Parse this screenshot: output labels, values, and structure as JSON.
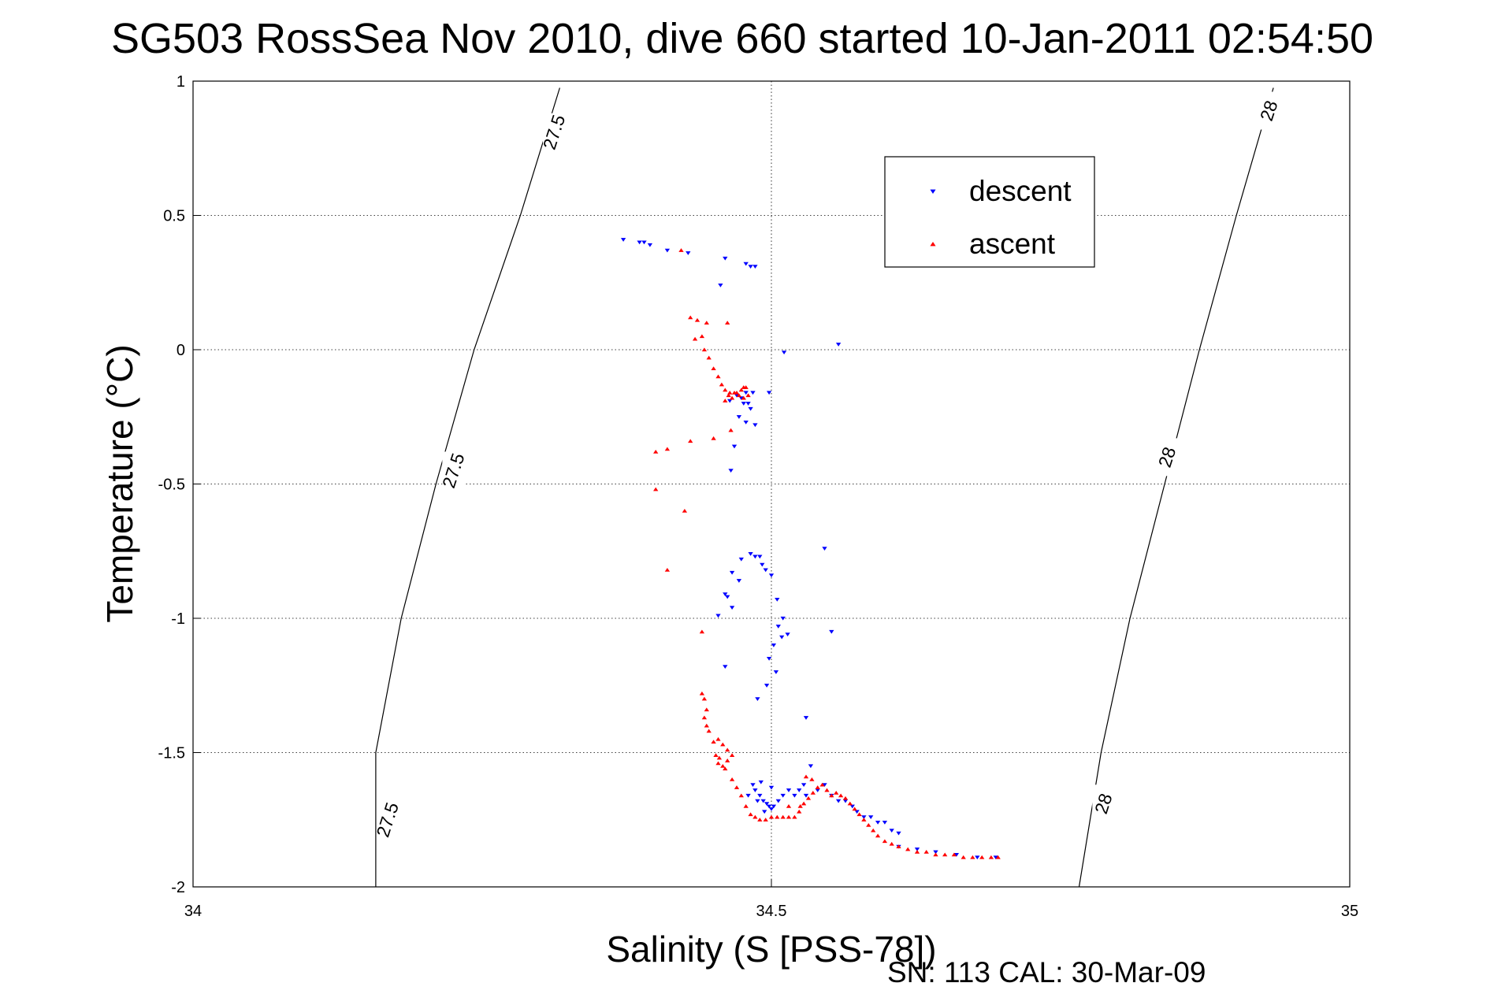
{
  "chart_data": {
    "type": "scatter",
    "title": "SG503 RossSea Nov 2010, dive 660 started 10-Jan-2011 02:54:50",
    "xlabel": "Salinity (S [PSS-78])",
    "ylabel": "Temperature (°C)",
    "xlim": [
      34,
      35
    ],
    "ylim": [
      -2,
      1
    ],
    "xticks": [
      34,
      34.5,
      35
    ],
    "xtick_labels": [
      "34",
      "34.5",
      "35"
    ],
    "yticks": [
      1,
      0.5,
      0,
      -0.5,
      -1,
      -1.5,
      -2
    ],
    "ytick_labels": [
      "1",
      "0.5",
      "0",
      "-0.5",
      "-1",
      "-1.5",
      "-2"
    ],
    "grid": true,
    "legend_position": "upper-right",
    "density_contours": [
      {
        "label": "27.5",
        "points": [
          [
            34.317,
            0.975
          ],
          [
            34.283,
            0.5
          ],
          [
            34.243,
            0.0
          ],
          [
            34.21,
            -0.5
          ],
          [
            34.18,
            -1.0
          ],
          [
            34.158,
            -1.5
          ],
          [
            34.158,
            -2.0
          ]
        ],
        "label_points": [
          [
            34.312,
            0.81
          ],
          [
            34.225,
            -0.45
          ],
          [
            34.168,
            -1.75
          ]
        ]
      },
      {
        "label": "28",
        "points": [
          [
            34.934,
            0.975
          ],
          [
            34.902,
            0.5
          ],
          [
            34.87,
            0.0
          ],
          [
            34.84,
            -0.5
          ],
          [
            34.81,
            -1.0
          ],
          [
            34.785,
            -1.5
          ],
          [
            34.766,
            -2.0
          ]
        ],
        "label_points": [
          [
            34.93,
            0.89
          ],
          [
            34.842,
            -0.4
          ],
          [
            34.787,
            -1.69
          ]
        ]
      }
    ],
    "series": [
      {
        "name": "descent",
        "color": "#0000ff",
        "marker": "triangle-down",
        "points": [
          [
            34.372,
            0.41
          ],
          [
            34.386,
            0.4
          ],
          [
            34.39,
            0.4
          ],
          [
            34.395,
            0.39
          ],
          [
            34.41,
            0.37
          ],
          [
            34.428,
            0.36
          ],
          [
            34.46,
            0.34
          ],
          [
            34.478,
            0.32
          ],
          [
            34.482,
            0.31
          ],
          [
            34.486,
            0.31
          ],
          [
            34.456,
            0.24
          ],
          [
            34.511,
            -0.01
          ],
          [
            34.558,
            0.02
          ],
          [
            34.47,
            -0.17
          ],
          [
            34.474,
            -0.18
          ],
          [
            34.476,
            -0.2
          ],
          [
            34.48,
            -0.2
          ],
          [
            34.482,
            -0.22
          ],
          [
            34.464,
            -0.19
          ],
          [
            34.478,
            -0.16
          ],
          [
            34.484,
            -0.16
          ],
          [
            34.498,
            -0.16
          ],
          [
            34.472,
            -0.25
          ],
          [
            34.478,
            -0.27
          ],
          [
            34.486,
            -0.28
          ],
          [
            34.468,
            -0.36
          ],
          [
            34.465,
            -0.45
          ],
          [
            34.482,
            -0.76
          ],
          [
            34.486,
            -0.77
          ],
          [
            34.49,
            -0.77
          ],
          [
            34.474,
            -0.78
          ],
          [
            34.492,
            -0.8
          ],
          [
            34.495,
            -0.82
          ],
          [
            34.5,
            -0.84
          ],
          [
            34.466,
            -0.83
          ],
          [
            34.472,
            -0.86
          ],
          [
            34.46,
            -0.91
          ],
          [
            34.462,
            -0.92
          ],
          [
            34.466,
            -0.96
          ],
          [
            34.454,
            -0.99
          ],
          [
            34.505,
            -0.93
          ],
          [
            34.51,
            -1.0
          ],
          [
            34.506,
            -1.03
          ],
          [
            34.509,
            -1.07
          ],
          [
            34.502,
            -1.1
          ],
          [
            34.498,
            -1.15
          ],
          [
            34.504,
            -1.2
          ],
          [
            34.496,
            -1.25
          ],
          [
            34.488,
            -1.3
          ],
          [
            34.546,
            -0.74
          ],
          [
            34.552,
            -1.05
          ],
          [
            34.514,
            -1.06
          ],
          [
            34.46,
            -1.18
          ],
          [
            34.53,
            -1.37
          ],
          [
            34.484,
            -1.62
          ],
          [
            34.486,
            -1.64
          ],
          [
            34.49,
            -1.66
          ],
          [
            34.493,
            -1.68
          ],
          [
            34.496,
            -1.69
          ],
          [
            34.498,
            -1.7
          ],
          [
            34.5,
            -1.71
          ],
          [
            34.502,
            -1.7
          ],
          [
            34.506,
            -1.68
          ],
          [
            34.51,
            -1.66
          ],
          [
            34.515,
            -1.64
          ],
          [
            34.52,
            -1.66
          ],
          [
            34.524,
            -1.64
          ],
          [
            34.53,
            -1.66
          ],
          [
            34.534,
            -1.55
          ],
          [
            34.528,
            -1.62
          ],
          [
            34.54,
            -1.64
          ],
          [
            34.546,
            -1.62
          ],
          [
            34.552,
            -1.66
          ],
          [
            34.558,
            -1.68
          ],
          [
            34.564,
            -1.68
          ],
          [
            34.57,
            -1.7
          ],
          [
            34.574,
            -1.72
          ],
          [
            34.58,
            -1.74
          ],
          [
            34.586,
            -1.74
          ],
          [
            34.592,
            -1.76
          ],
          [
            34.598,
            -1.76
          ],
          [
            34.604,
            -1.79
          ],
          [
            34.61,
            -1.8
          ],
          [
            34.5,
            -1.63
          ],
          [
            34.494,
            -1.72
          ],
          [
            34.488,
            -1.68
          ],
          [
            34.48,
            -1.66
          ],
          [
            34.491,
            -1.61
          ],
          [
            34.61,
            -1.85
          ],
          [
            34.626,
            -1.86
          ],
          [
            34.642,
            -1.87
          ],
          [
            34.66,
            -1.88
          ],
          [
            34.678,
            -1.89
          ],
          [
            34.694,
            -1.89
          ]
        ]
      },
      {
        "name": "ascent",
        "color": "#ff0000",
        "marker": "triangle-up",
        "points": [
          [
            34.422,
            0.37
          ],
          [
            34.43,
            0.12
          ],
          [
            34.436,
            0.11
          ],
          [
            34.444,
            0.1
          ],
          [
            34.462,
            0.1
          ],
          [
            34.44,
            0.05
          ],
          [
            34.434,
            0.04
          ],
          [
            34.442,
            0.0
          ],
          [
            34.446,
            -0.03
          ],
          [
            34.45,
            -0.07
          ],
          [
            34.454,
            -0.1
          ],
          [
            34.457,
            -0.13
          ],
          [
            34.46,
            -0.15
          ],
          [
            34.463,
            -0.17
          ],
          [
            34.466,
            -0.18
          ],
          [
            34.47,
            -0.16
          ],
          [
            34.474,
            -0.15
          ],
          [
            34.476,
            -0.14
          ],
          [
            34.478,
            -0.14
          ],
          [
            34.48,
            -0.17
          ],
          [
            34.476,
            -0.18
          ],
          [
            34.472,
            -0.17
          ],
          [
            34.468,
            -0.16
          ],
          [
            34.464,
            -0.16
          ],
          [
            34.46,
            -0.19
          ],
          [
            34.465,
            -0.3
          ],
          [
            34.45,
            -0.33
          ],
          [
            34.43,
            -0.34
          ],
          [
            34.41,
            -0.37
          ],
          [
            34.4,
            -0.38
          ],
          [
            34.4,
            -0.52
          ],
          [
            34.425,
            -0.6
          ],
          [
            34.41,
            -0.82
          ],
          [
            34.44,
            -1.05
          ],
          [
            34.44,
            -1.28
          ],
          [
            34.442,
            -1.3
          ],
          [
            34.444,
            -1.34
          ],
          [
            34.442,
            -1.37
          ],
          [
            34.444,
            -1.4
          ],
          [
            34.446,
            -1.42
          ],
          [
            34.45,
            -1.46
          ],
          [
            34.454,
            -1.45
          ],
          [
            34.458,
            -1.47
          ],
          [
            34.462,
            -1.49
          ],
          [
            34.466,
            -1.51
          ],
          [
            34.462,
            -1.53
          ],
          [
            34.458,
            -1.55
          ],
          [
            34.454,
            -1.54
          ],
          [
            34.452,
            -1.51
          ],
          [
            34.455,
            -1.52
          ],
          [
            34.46,
            -1.56
          ],
          [
            34.466,
            -1.6
          ],
          [
            34.47,
            -1.63
          ],
          [
            34.474,
            -1.66
          ],
          [
            34.478,
            -1.7
          ],
          [
            34.482,
            -1.73
          ],
          [
            34.486,
            -1.74
          ],
          [
            34.49,
            -1.75
          ],
          [
            34.495,
            -1.75
          ],
          [
            34.5,
            -1.74
          ],
          [
            34.505,
            -1.74
          ],
          [
            34.51,
            -1.74
          ],
          [
            34.515,
            -1.74
          ],
          [
            34.52,
            -1.74
          ],
          [
            34.524,
            -1.72
          ],
          [
            34.528,
            -1.69
          ],
          [
            34.532,
            -1.67
          ],
          [
            34.536,
            -1.65
          ],
          [
            34.54,
            -1.63
          ],
          [
            34.544,
            -1.62
          ],
          [
            34.548,
            -1.64
          ],
          [
            34.552,
            -1.66
          ],
          [
            34.556,
            -1.65
          ],
          [
            34.56,
            -1.66
          ],
          [
            34.564,
            -1.67
          ],
          [
            34.568,
            -1.69
          ],
          [
            34.572,
            -1.71
          ],
          [
            34.576,
            -1.73
          ],
          [
            34.58,
            -1.75
          ],
          [
            34.584,
            -1.77
          ],
          [
            34.588,
            -1.79
          ],
          [
            34.592,
            -1.81
          ],
          [
            34.598,
            -1.83
          ],
          [
            34.604,
            -1.84
          ],
          [
            34.61,
            -1.85
          ],
          [
            34.618,
            -1.86
          ],
          [
            34.626,
            -1.87
          ],
          [
            34.634,
            -1.87
          ],
          [
            34.642,
            -1.88
          ],
          [
            34.65,
            -1.88
          ],
          [
            34.658,
            -1.88
          ],
          [
            34.666,
            -1.89
          ],
          [
            34.674,
            -1.89
          ],
          [
            34.682,
            -1.89
          ],
          [
            34.69,
            -1.89
          ],
          [
            34.696,
            -1.89
          ],
          [
            34.53,
            -1.59
          ],
          [
            34.535,
            -1.6
          ],
          [
            34.525,
            -1.7
          ],
          [
            34.515,
            -1.7
          ]
        ]
      }
    ]
  },
  "footer": "SN: 113  CAL: 30-Mar-09"
}
